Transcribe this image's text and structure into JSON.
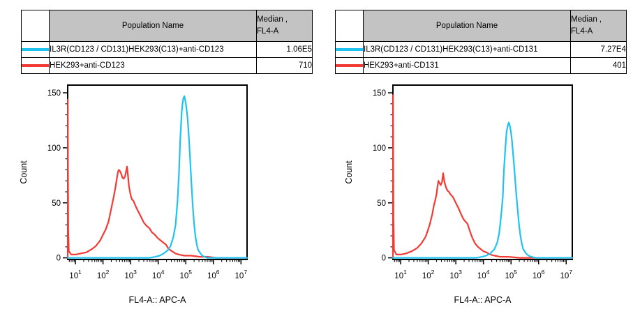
{
  "colors": {
    "series_cyan": "#1FC2F0",
    "series_red": "#F23B35",
    "table_header_bg": "#C3C3C3",
    "axis": "#000000",
    "background": "#FFFFFF"
  },
  "panels": [
    {
      "table": {
        "headers": {
          "population": "Population Name",
          "median_line1": "Median ,",
          "median_line2": "FL4-A"
        },
        "rows": [
          {
            "color": "#1FC2F0",
            "name": "IL3R(CD123 / CD131)HEK293(C13)+anti-CD123",
            "median": "1.06E5"
          },
          {
            "color": "#F23B35",
            "name": "HEK293+anti-CD123",
            "median": "710"
          }
        ]
      }
    },
    {
      "table": {
        "headers": {
          "population": "Population Name",
          "median_line1": "Median ,",
          "median_line2": "FL4-A"
        },
        "rows": [
          {
            "color": "#1FC2F0",
            "name": "IL3R(CD123 / CD131)HEK293(C13)+anti-CD131",
            "median": "7.27E4"
          },
          {
            "color": "#F23B35",
            "name": "HEK293+anti-CD131",
            "median": "401"
          }
        ]
      }
    }
  ],
  "chart_data": [
    {
      "type": "line",
      "title": "",
      "xlabel": "FL4-A:: APC-A",
      "ylabel": "Count",
      "x_scale": "log10",
      "x_tick_base": "10",
      "x_decade_labels": [
        1,
        2,
        3,
        4,
        5,
        6,
        7
      ],
      "xlim_log10": [
        0.72,
        7.22
      ],
      "ylim": [
        -1.5,
        157
      ],
      "y_major_ticks": [
        0,
        50,
        100,
        150
      ],
      "y_minor_step": 10,
      "grid": false,
      "legend_position": "table-above",
      "series": [
        {
          "name": "IL3R(CD123 / CD131)HEK293(C13)+anti-CD123",
          "color": "#1FC2F0",
          "median_fl4a": "1.06E5",
          "points": [
            [
              0.72,
              0
            ],
            [
              3.7,
              0
            ],
            [
              3.9,
              1
            ],
            [
              4.05,
              2
            ],
            [
              4.2,
              4
            ],
            [
              4.35,
              7
            ],
            [
              4.45,
              11
            ],
            [
              4.55,
              19
            ],
            [
              4.63,
              30
            ],
            [
              4.7,
              52
            ],
            [
              4.75,
              75
            ],
            [
              4.8,
              108
            ],
            [
              4.85,
              132
            ],
            [
              4.88,
              140
            ],
            [
              4.91,
              145
            ],
            [
              4.95,
              147
            ],
            [
              4.99,
              142
            ],
            [
              5.03,
              135
            ],
            [
              5.07,
              125
            ],
            [
              5.11,
              110
            ],
            [
              5.15,
              92
            ],
            [
              5.2,
              70
            ],
            [
              5.25,
              48
            ],
            [
              5.3,
              31
            ],
            [
              5.35,
              19
            ],
            [
              5.4,
              12
            ],
            [
              5.45,
              7
            ],
            [
              5.53,
              4
            ],
            [
              5.6,
              2
            ],
            [
              5.68,
              1
            ],
            [
              5.78,
              0
            ],
            [
              7.22,
              0
            ]
          ]
        },
        {
          "name": "HEK293+anti-CD123",
          "color": "#F23B35",
          "median_fl4a": "710",
          "points": [
            [
              0.72,
              0
            ],
            [
              0.725,
              144
            ],
            [
              0.73,
              86
            ],
            [
              0.74,
              25
            ],
            [
              0.76,
              6
            ],
            [
              0.85,
              3
            ],
            [
              1.0,
              3
            ],
            [
              1.2,
              4
            ],
            [
              1.4,
              5
            ],
            [
              1.6,
              8
            ],
            [
              1.75,
              11
            ],
            [
              1.9,
              16
            ],
            [
              2.0,
              21
            ],
            [
              2.1,
              26
            ],
            [
              2.2,
              33
            ],
            [
              2.3,
              45
            ],
            [
              2.4,
              57
            ],
            [
              2.45,
              64
            ],
            [
              2.5,
              72
            ],
            [
              2.54,
              78
            ],
            [
              2.57,
              80
            ],
            [
              2.61,
              79
            ],
            [
              2.65,
              77
            ],
            [
              2.7,
              73
            ],
            [
              2.75,
              72
            ],
            [
              2.8,
              74
            ],
            [
              2.84,
              79
            ],
            [
              2.87,
              83
            ],
            [
              2.9,
              76
            ],
            [
              2.94,
              65
            ],
            [
              3.0,
              57
            ],
            [
              3.05,
              53
            ],
            [
              3.1,
              52
            ],
            [
              3.18,
              47
            ],
            [
              3.28,
              42
            ],
            [
              3.38,
              37
            ],
            [
              3.48,
              32
            ],
            [
              3.58,
              29
            ],
            [
              3.68,
              27
            ],
            [
              3.78,
              23
            ],
            [
              3.88,
              21
            ],
            [
              3.98,
              18
            ],
            [
              4.08,
              16
            ],
            [
              4.18,
              14
            ],
            [
              4.28,
              12
            ],
            [
              4.38,
              8
            ],
            [
              4.5,
              6
            ],
            [
              4.62,
              4
            ],
            [
              4.75,
              3
            ],
            [
              4.95,
              2
            ],
            [
              5.2,
              2
            ],
            [
              5.5,
              1
            ],
            [
              5.8,
              1
            ],
            [
              6.1,
              0
            ],
            [
              7.22,
              0
            ]
          ]
        }
      ]
    },
    {
      "type": "line",
      "title": "",
      "xlabel": "FL4-A:: APC-A",
      "ylabel": "Count",
      "x_scale": "log10",
      "x_tick_base": "10",
      "x_decade_labels": [
        1,
        2,
        3,
        4,
        5,
        6,
        7
      ],
      "xlim_log10": [
        0.72,
        7.22
      ],
      "ylim": [
        -1.5,
        157
      ],
      "y_major_ticks": [
        0,
        50,
        100,
        150
      ],
      "y_minor_step": 10,
      "grid": false,
      "legend_position": "table-above",
      "series": [
        {
          "name": "IL3R(CD123 / CD131)HEK293(C13)+anti-CD131",
          "color": "#1FC2F0",
          "median_fl4a": "7.27E4",
          "points": [
            [
              0.72,
              0
            ],
            [
              3.75,
              0
            ],
            [
              3.95,
              1
            ],
            [
              4.1,
              2
            ],
            [
              4.25,
              4
            ],
            [
              4.4,
              8
            ],
            [
              4.5,
              14
            ],
            [
              4.57,
              22
            ],
            [
              4.64,
              38
            ],
            [
              4.7,
              55
            ],
            [
              4.74,
              78
            ],
            [
              4.79,
              98
            ],
            [
              4.84,
              115
            ],
            [
              4.89,
              121
            ],
            [
              4.92,
              123
            ],
            [
              4.96,
              120
            ],
            [
              5.0,
              114
            ],
            [
              5.04,
              105
            ],
            [
              5.09,
              90
            ],
            [
              5.14,
              74
            ],
            [
              5.19,
              58
            ],
            [
              5.24,
              44
            ],
            [
              5.29,
              30
            ],
            [
              5.34,
              20
            ],
            [
              5.39,
              13
            ],
            [
              5.44,
              8
            ],
            [
              5.54,
              4
            ],
            [
              5.64,
              2
            ],
            [
              5.74,
              1
            ],
            [
              5.89,
              0
            ],
            [
              7.22,
              0
            ]
          ]
        },
        {
          "name": "HEK293+anti-CD131",
          "color": "#F23B35",
          "median_fl4a": "401",
          "points": [
            [
              0.72,
              0
            ],
            [
              0.725,
              148
            ],
            [
              0.73,
              97
            ],
            [
              0.74,
              35
            ],
            [
              0.76,
              7
            ],
            [
              0.85,
              3
            ],
            [
              1.0,
              3
            ],
            [
              1.2,
              4
            ],
            [
              1.4,
              6
            ],
            [
              1.6,
              9
            ],
            [
              1.75,
              13
            ],
            [
              1.9,
              19
            ],
            [
              2.0,
              26
            ],
            [
              2.05,
              30
            ],
            [
              2.1,
              35
            ],
            [
              2.15,
              40
            ],
            [
              2.2,
              47
            ],
            [
              2.25,
              52
            ],
            [
              2.3,
              58
            ],
            [
              2.33,
              64
            ],
            [
              2.37,
              70
            ],
            [
              2.41,
              68
            ],
            [
              2.45,
              66
            ],
            [
              2.5,
              69
            ],
            [
              2.54,
              77
            ],
            [
              2.58,
              70
            ],
            [
              2.62,
              66
            ],
            [
              2.66,
              63
            ],
            [
              2.7,
              61
            ],
            [
              2.75,
              60
            ],
            [
              2.8,
              58
            ],
            [
              2.9,
              55
            ],
            [
              3.0,
              50
            ],
            [
              3.1,
              45
            ],
            [
              3.2,
              39
            ],
            [
              3.28,
              35
            ],
            [
              3.35,
              33
            ],
            [
              3.42,
              31
            ],
            [
              3.5,
              25
            ],
            [
              3.6,
              18
            ],
            [
              3.7,
              13
            ],
            [
              3.8,
              10
            ],
            [
              3.9,
              8
            ],
            [
              4.0,
              6
            ],
            [
              4.1,
              5
            ],
            [
              4.25,
              3
            ],
            [
              4.4,
              2
            ],
            [
              4.6,
              1
            ],
            [
              4.9,
              1
            ],
            [
              5.3,
              0
            ],
            [
              7.22,
              0
            ]
          ]
        }
      ]
    }
  ]
}
